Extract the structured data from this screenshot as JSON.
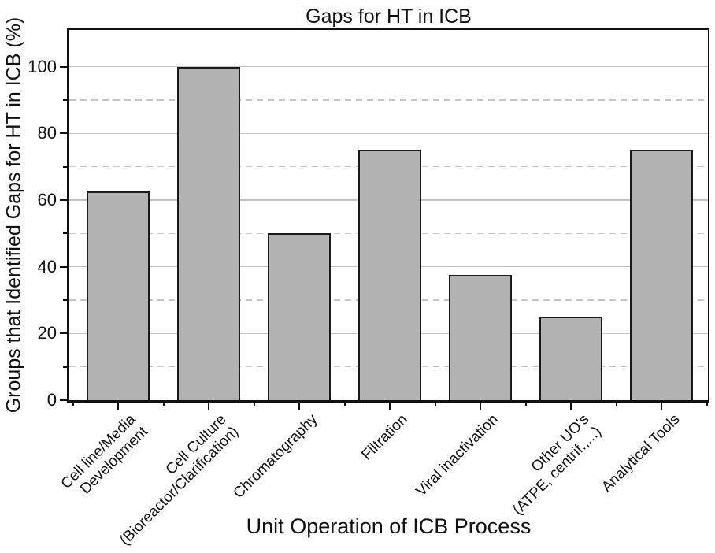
{
  "chart_data": {
    "type": "bar",
    "title": "Gaps for HT in ICB",
    "xlabel": "Unit Operation of ICB Process",
    "ylabel": "Groups that Identified Gaps for HT in ICB (%)",
    "categories": [
      "Cell line/Media\nDevelopment",
      "Cell Culture\n(Bioreactor/Clarification)",
      "Chromatography",
      "Filtration",
      "Viral inactivation",
      "Other UO's\n(ATPE, centrif.,...)",
      "Analytical Tools"
    ],
    "values": [
      62.5,
      100,
      50,
      75,
      37.5,
      25,
      75
    ],
    "ylim": [
      0,
      111
    ],
    "yticks_major": [
      0,
      20,
      40,
      60,
      80,
      100
    ],
    "yticks_minor": [
      10,
      30,
      50,
      70,
      90
    ],
    "grid": "major solid, minor dashed, horizontal only",
    "legend": "none",
    "bar_fill_color": "#b2b2b2",
    "bar_border_color": "#1a1a1a",
    "gridline_color": "#c4c4c4"
  }
}
